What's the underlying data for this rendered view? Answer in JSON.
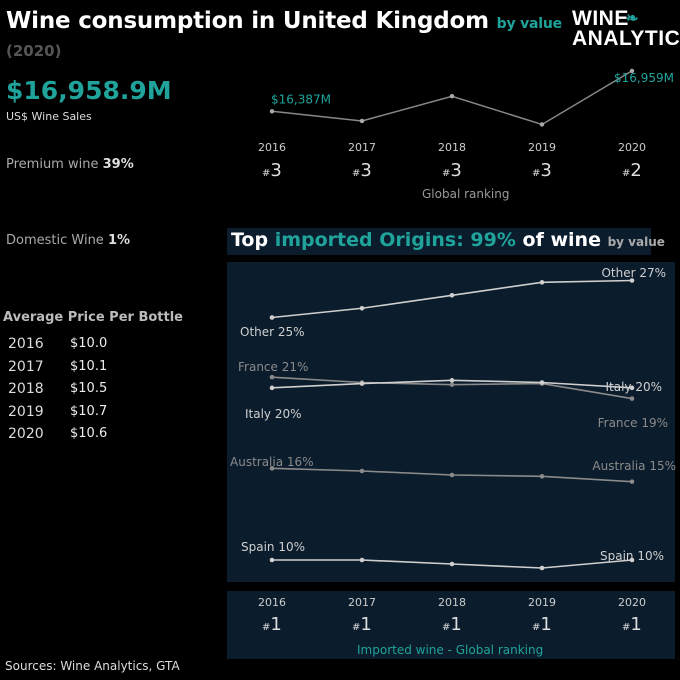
{
  "header": {
    "title": "Wine consumption in United Kingdom",
    "title_suffix": "by value",
    "year": "(2020)",
    "logo_line1": "WINE",
    "logo_line2": "ANALYTICS"
  },
  "summary": {
    "sales_value": "$16,958.9M",
    "sales_label": "US$ Wine Sales",
    "premium_label": "Premium wine",
    "premium_value": "39%",
    "domestic_label": "Domestic Wine",
    "domestic_value": "1%"
  },
  "avg_price": {
    "title": "Average Price Per Bottle",
    "rows": [
      {
        "year": "2016",
        "price": "$10.0"
      },
      {
        "year": "2017",
        "price": "$10.1"
      },
      {
        "year": "2018",
        "price": "$10.5"
      },
      {
        "year": "2019",
        "price": "$10.7"
      },
      {
        "year": "2020",
        "price": "$10.6"
      }
    ]
  },
  "sales_chart": {
    "first_label": "$16,387M",
    "last_label": "$16,959M",
    "years": [
      "2016",
      "2017",
      "2018",
      "2019",
      "2020"
    ],
    "ranks": [
      "3",
      "3",
      "3",
      "3",
      "2"
    ],
    "rank_caption": "Global ranking"
  },
  "imports": {
    "title_a": "Top",
    "title_b": "imported Origins: 99%",
    "title_c": "of wine",
    "title_d": "by value",
    "years": [
      "2016",
      "2017",
      "2018",
      "2019",
      "2020"
    ],
    "ranks": [
      "1",
      "1",
      "1",
      "1",
      "1"
    ],
    "rank_caption": "Imported wine - Global ranking"
  },
  "chart_data": [
    {
      "type": "line",
      "x": [
        "2016",
        "2017",
        "2018",
        "2019",
        "2020"
      ],
      "series": [
        {
          "name": "US$ Wine Sales",
          "values": [
            16387,
            16250,
            16600,
            16200,
            16959
          ]
        }
      ],
      "annotations": [
        "$16,387M",
        "$16,959M"
      ],
      "color": "#888888"
    },
    {
      "type": "line",
      "x": [
        "2016",
        "2017",
        "2018",
        "2019",
        "2020"
      ],
      "series": [
        {
          "name": "Other",
          "values": [
            25,
            25.5,
            26.2,
            26.9,
            27
          ],
          "start_label": "Other 25%",
          "end_label": "Other 27%",
          "color": "#cfcfcf"
        },
        {
          "name": "France",
          "values": [
            21,
            20.5,
            20.3,
            20.4,
            19
          ],
          "start_label": "France 21%",
          "end_label": "France 19%",
          "color": "#8a8a8a"
        },
        {
          "name": "Italy",
          "values": [
            20,
            20.4,
            20.7,
            20.5,
            20
          ],
          "start_label": "Italy 20%",
          "end_label": "Italy 20%",
          "color": "#cfcfcf"
        },
        {
          "name": "Australia",
          "values": [
            16,
            15.8,
            15.5,
            15.4,
            15
          ],
          "start_label": "Australia 16%",
          "end_label": "Australia 15%",
          "color": "#8a8a8a"
        },
        {
          "name": "Spain",
          "values": [
            10,
            10,
            9.8,
            9.6,
            10
          ],
          "start_label": "Spain 10%",
          "end_label": "Spain 10%",
          "color": "#cfcfcf"
        }
      ]
    }
  ],
  "footer": {
    "source": "Sources: Wine Analytics, GTA"
  }
}
